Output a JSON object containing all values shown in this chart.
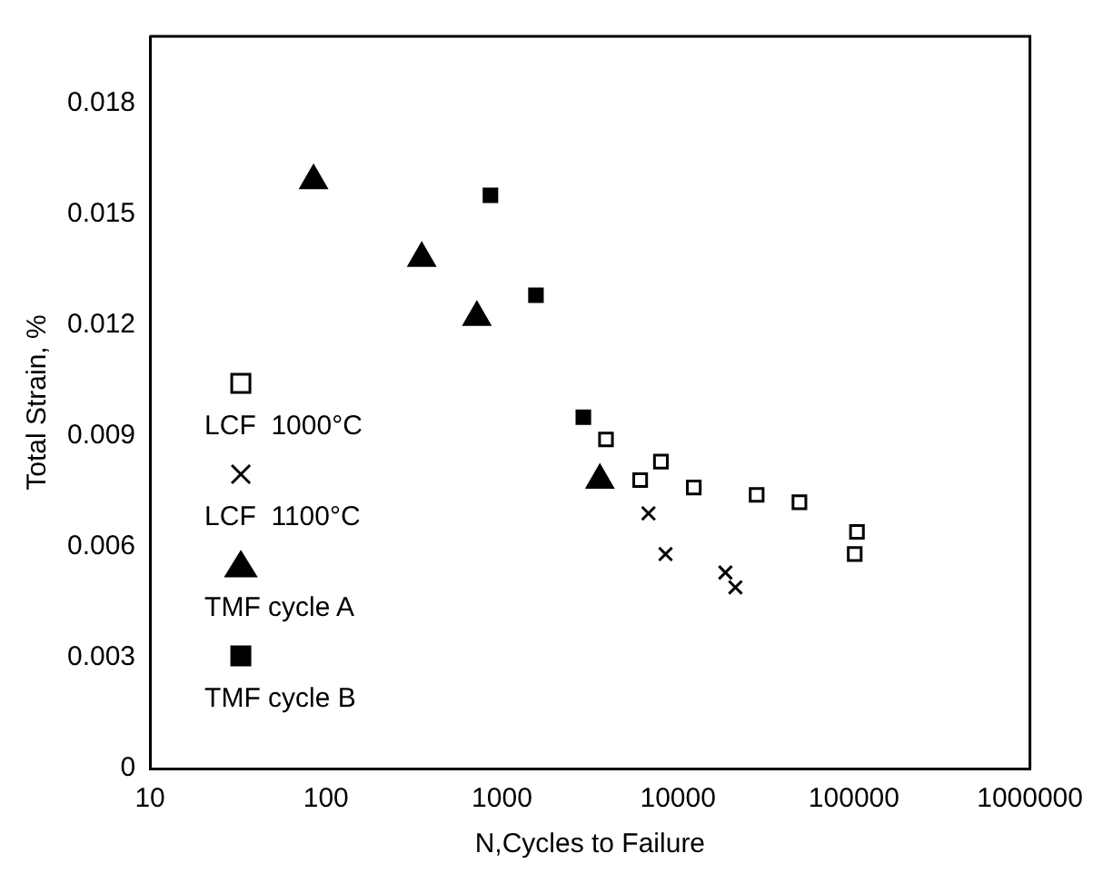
{
  "chart_data": {
    "type": "scatter",
    "xlabel": "N,Cycles to Failure",
    "ylabel": "Total Strain, %",
    "log": "x",
    "xlim": [
      10,
      1000000
    ],
    "xticks": [
      10,
      100,
      1000,
      10000,
      100000,
      1000000
    ],
    "ylim": [
      0,
      0.0198
    ],
    "yticks": [
      0,
      0.003,
      0.006,
      0.009,
      0.012,
      0.015,
      0.018
    ],
    "grid": false,
    "legend": "bottom left",
    "series": [
      {
        "name": "LCF  1000°C",
        "color": "#ffffff",
        "marker": "square",
        "x": [
          3900,
          8000,
          6100,
          12300,
          28000,
          49000,
          104000,
          101000
        ],
        "values": [
          0.0089,
          0.0083,
          0.0078,
          0.0076,
          0.0074,
          0.0072,
          0.0064,
          0.0058
        ]
      },
      {
        "name": "LCF  1100°C",
        "color": "#000000",
        "marker": "cross",
        "x": [
          6800,
          8500,
          18600,
          21200
        ],
        "values": [
          0.0069,
          0.0058,
          0.0053,
          0.0049
        ]
      },
      {
        "name": "TMF cycle A",
        "color": "#000000",
        "marker": "triangle",
        "x": [
          85,
          350,
          720,
          3600
        ],
        "values": [
          0.0159,
          0.0138,
          0.0122,
          0.0078
        ]
      },
      {
        "name": "TMF cycle B",
        "color": "#000000",
        "marker": "square",
        "x": [
          860,
          1560,
          2900
        ],
        "values": [
          0.0155,
          0.0128,
          0.0095
        ]
      }
    ]
  }
}
